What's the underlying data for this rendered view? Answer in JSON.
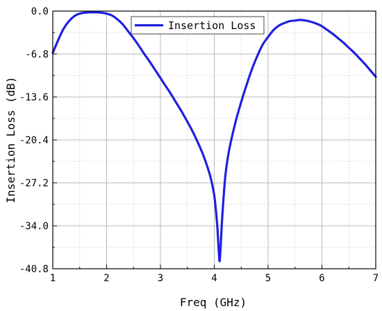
{
  "chart_data": {
    "type": "line",
    "xlabel": "Freq (GHz)",
    "ylabel": "Insertion Loss (dB)",
    "xlim": [
      1,
      7
    ],
    "ylim": [
      -40.8,
      0.0
    ],
    "xticks": [
      1,
      2,
      3,
      4,
      5,
      6,
      7
    ],
    "yticks": [
      0.0,
      -6.8,
      -13.6,
      -20.4,
      -27.2,
      -34.0,
      -40.8
    ],
    "xtick_labels": [
      "1",
      "2",
      "3",
      "4",
      "5",
      "6",
      "7"
    ],
    "ytick_labels": [
      "0.0",
      "-6.8",
      "-13.6",
      "-20.4",
      "-27.2",
      "-34.0",
      "-40.8"
    ],
    "grid": true,
    "minor_grid": true,
    "legend_position": "top-center",
    "series": [
      {
        "name": "Insertion Loss",
        "color": "#1f1fe0",
        "x": [
          1.0,
          1.1,
          1.2,
          1.3,
          1.4,
          1.5,
          1.6,
          1.7,
          1.8,
          1.9,
          2.0,
          2.1,
          2.2,
          2.3,
          2.4,
          2.5,
          2.6,
          2.7,
          2.8,
          2.9,
          3.0,
          3.1,
          3.2,
          3.3,
          3.4,
          3.5,
          3.6,
          3.7,
          3.8,
          3.9,
          3.95,
          4.0,
          4.03,
          4.06,
          4.08,
          4.1,
          4.12,
          4.15,
          4.2,
          4.25,
          4.3,
          4.4,
          4.5,
          4.6,
          4.7,
          4.8,
          4.9,
          5.0,
          5.1,
          5.2,
          5.3,
          5.4,
          5.5,
          5.6,
          5.7,
          5.8,
          5.9,
          6.0,
          6.1,
          6.2,
          6.3,
          6.4,
          6.5,
          6.6,
          6.7,
          6.8,
          6.9,
          7.0
        ],
        "y": [
          -6.6,
          -4.6,
          -2.8,
          -1.6,
          -0.8,
          -0.4,
          -0.25,
          -0.2,
          -0.2,
          -0.25,
          -0.4,
          -0.7,
          -1.3,
          -2.1,
          -3.2,
          -4.3,
          -5.5,
          -6.8,
          -8.0,
          -9.3,
          -10.6,
          -11.9,
          -13.2,
          -14.6,
          -16.0,
          -17.5,
          -19.1,
          -20.9,
          -22.9,
          -25.4,
          -27.0,
          -29.2,
          -31.5,
          -34.5,
          -37.5,
          -39.6,
          -37.0,
          -32.4,
          -26.6,
          -23.3,
          -21.0,
          -17.4,
          -14.4,
          -11.7,
          -9.2,
          -7.1,
          -5.3,
          -4.1,
          -3.0,
          -2.3,
          -1.9,
          -1.6,
          -1.5,
          -1.4,
          -1.5,
          -1.7,
          -2.0,
          -2.4,
          -3.0,
          -3.6,
          -4.3,
          -5.0,
          -5.8,
          -6.6,
          -7.5,
          -8.4,
          -9.4,
          -10.4
        ]
      }
    ]
  }
}
